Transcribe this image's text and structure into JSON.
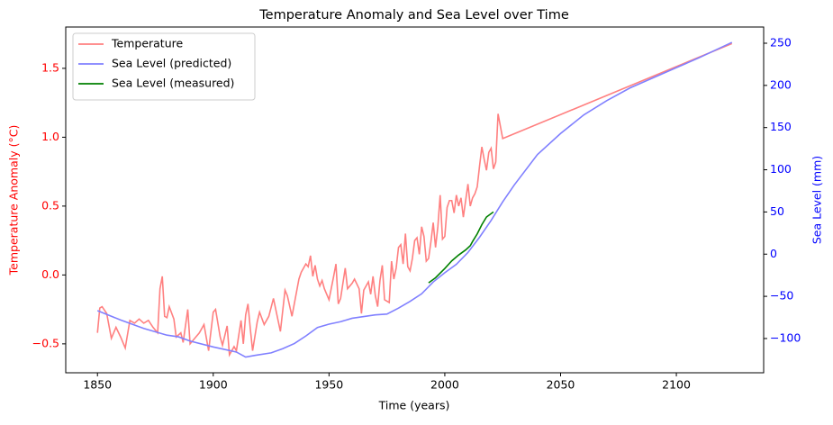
{
  "chart_data": {
    "type": "line",
    "title": "Temperature Anomaly and Sea Level over Time",
    "xlabel": "Time (years)",
    "ylabel": "Temperature Anomaly (°C)",
    "y2label": "Sea Level (mm)",
    "ylabel_color": "#ff0000",
    "y2label_color": "#0000ff",
    "legend": "upper left",
    "xlim": [
      1836.3,
      2137.7
    ],
    "xticks": [
      1850,
      1900,
      1950,
      2000,
      2050,
      2100
    ],
    "ylim": [
      -0.71,
      1.8
    ],
    "yticks": [
      {
        "value": -0.5,
        "label": "−0.5"
      },
      {
        "value": 0,
        "label": "0.0"
      },
      {
        "value": 0.5,
        "label": "0.5"
      },
      {
        "value": 1,
        "label": "1.0"
      },
      {
        "value": 1.5,
        "label": "1.5"
      }
    ],
    "y2lim": [
      -140.6,
      269.2
    ],
    "y2ticks": [
      {
        "value": -100,
        "label": "−100"
      },
      {
        "value": -50,
        "label": "−50"
      },
      0,
      50,
      100,
      150,
      200,
      250
    ],
    "series": [
      {
        "name": "Temperature",
        "color": "#ff8080",
        "axis": "y",
        "x": [
          1850,
          1851,
          1852,
          1854,
          1856,
          1858,
          1860,
          1862,
          1864,
          1866,
          1868,
          1870,
          1872,
          1874,
          1876,
          1877,
          1878,
          1879,
          1880,
          1881,
          1883,
          1884,
          1886,
          1887,
          1889,
          1890,
          1892,
          1894,
          1896,
          1898,
          1900,
          1901,
          1903,
          1904,
          1906,
          1907,
          1909,
          1910,
          1912,
          1913,
          1914,
          1915,
          1916,
          1917,
          1919,
          1920,
          1922,
          1924,
          1926,
          1928,
          1929,
          1931,
          1932,
          1934,
          1936,
          1937,
          1938,
          1940,
          1941,
          1942,
          1943,
          1944,
          1945,
          1946,
          1947,
          1948,
          1950,
          1952,
          1953,
          1954,
          1955,
          1957,
          1958,
          1960,
          1961,
          1963,
          1964,
          1965,
          1967,
          1968,
          1969,
          1970,
          1971,
          1972,
          1973,
          1974,
          1976,
          1977,
          1978,
          1979,
          1980,
          1981,
          1982,
          1983,
          1984,
          1985,
          1986,
          1987,
          1988,
          1989,
          1990,
          1991,
          1992,
          1993,
          1994,
          1995,
          1996,
          1997,
          1998,
          1999,
          2000,
          2001,
          2002,
          2003,
          2004,
          2005,
          2006,
          2007,
          2008,
          2009,
          2010,
          2011,
          2012,
          2013,
          2014,
          2015,
          2016,
          2017,
          2018,
          2019,
          2020,
          2021,
          2022,
          2023,
          2025,
          2124
        ],
        "values": [
          -0.42,
          -0.24,
          -0.23,
          -0.28,
          -0.46,
          -0.38,
          -0.45,
          -0.53,
          -0.33,
          -0.35,
          -0.32,
          -0.35,
          -0.33,
          -0.38,
          -0.42,
          -0.1,
          -0.01,
          -0.3,
          -0.31,
          -0.23,
          -0.32,
          -0.45,
          -0.42,
          -0.49,
          -0.25,
          -0.5,
          -0.46,
          -0.42,
          -0.36,
          -0.55,
          -0.27,
          -0.25,
          -0.45,
          -0.51,
          -0.37,
          -0.58,
          -0.52,
          -0.55,
          -0.33,
          -0.5,
          -0.29,
          -0.21,
          -0.39,
          -0.55,
          -0.34,
          -0.27,
          -0.36,
          -0.3,
          -0.17,
          -0.33,
          -0.41,
          -0.11,
          -0.15,
          -0.3,
          -0.12,
          -0.03,
          0.02,
          0.08,
          0.06,
          0.14,
          -0.01,
          0.07,
          -0.03,
          -0.08,
          -0.04,
          -0.1,
          -0.18,
          -0.01,
          0.08,
          -0.21,
          -0.17,
          0.05,
          -0.1,
          -0.06,
          -0.03,
          -0.1,
          -0.28,
          -0.11,
          -0.05,
          -0.14,
          -0.01,
          -0.15,
          -0.23,
          -0.04,
          0.07,
          -0.18,
          -0.2,
          0.1,
          -0.03,
          0.05,
          0.2,
          0.22,
          0.08,
          0.3,
          0.06,
          0.03,
          0.12,
          0.25,
          0.27,
          0.15,
          0.35,
          0.28,
          0.1,
          0.12,
          0.24,
          0.38,
          0.2,
          0.35,
          0.58,
          0.26,
          0.28,
          0.49,
          0.54,
          0.54,
          0.45,
          0.58,
          0.5,
          0.56,
          0.42,
          0.54,
          0.66,
          0.5,
          0.56,
          0.59,
          0.64,
          0.79,
          0.93,
          0.84,
          0.76,
          0.89,
          0.92,
          0.77,
          0.82,
          1.17,
          0.99,
          1.68
        ]
      },
      {
        "name": "Sea Level (predicted)",
        "color": "#8080ff",
        "axis": "y2",
        "x": [
          1850,
          1860,
          1870,
          1880,
          1885,
          1890,
          1900,
          1910,
          1914,
          1918,
          1925,
          1930,
          1935,
          1940,
          1945,
          1950,
          1955,
          1960,
          1965,
          1970,
          1975,
          1980,
          1985,
          1990,
          1995,
          2000,
          2005,
          2010,
          2015,
          2020,
          2025,
          2030,
          2040,
          2050,
          2060,
          2070,
          2080,
          2090,
          2100,
          2110,
          2124
        ],
        "values": [
          -67,
          -78,
          -88,
          -96,
          -98,
          -103,
          -110,
          -116,
          -122,
          -120,
          -117,
          -112,
          -106,
          -97,
          -87,
          -83,
          -80,
          -76,
          -74,
          -72,
          -71,
          -64,
          -56,
          -47,
          -33,
          -22,
          -12,
          2,
          20,
          40,
          62,
          82,
          118,
          143,
          165,
          182,
          197,
          209,
          221,
          233,
          251
        ]
      },
      {
        "name": "Sea Level (measured)",
        "color": "#008000",
        "axis": "y2",
        "x": [
          1993,
          1996,
          2000,
          2003,
          2006,
          2009,
          2011,
          2012,
          2014,
          2016,
          2018,
          2021
        ],
        "values": [
          -34,
          -28,
          -17,
          -8,
          -1,
          5,
          10,
          15,
          24,
          35,
          44,
          50
        ]
      }
    ]
  }
}
